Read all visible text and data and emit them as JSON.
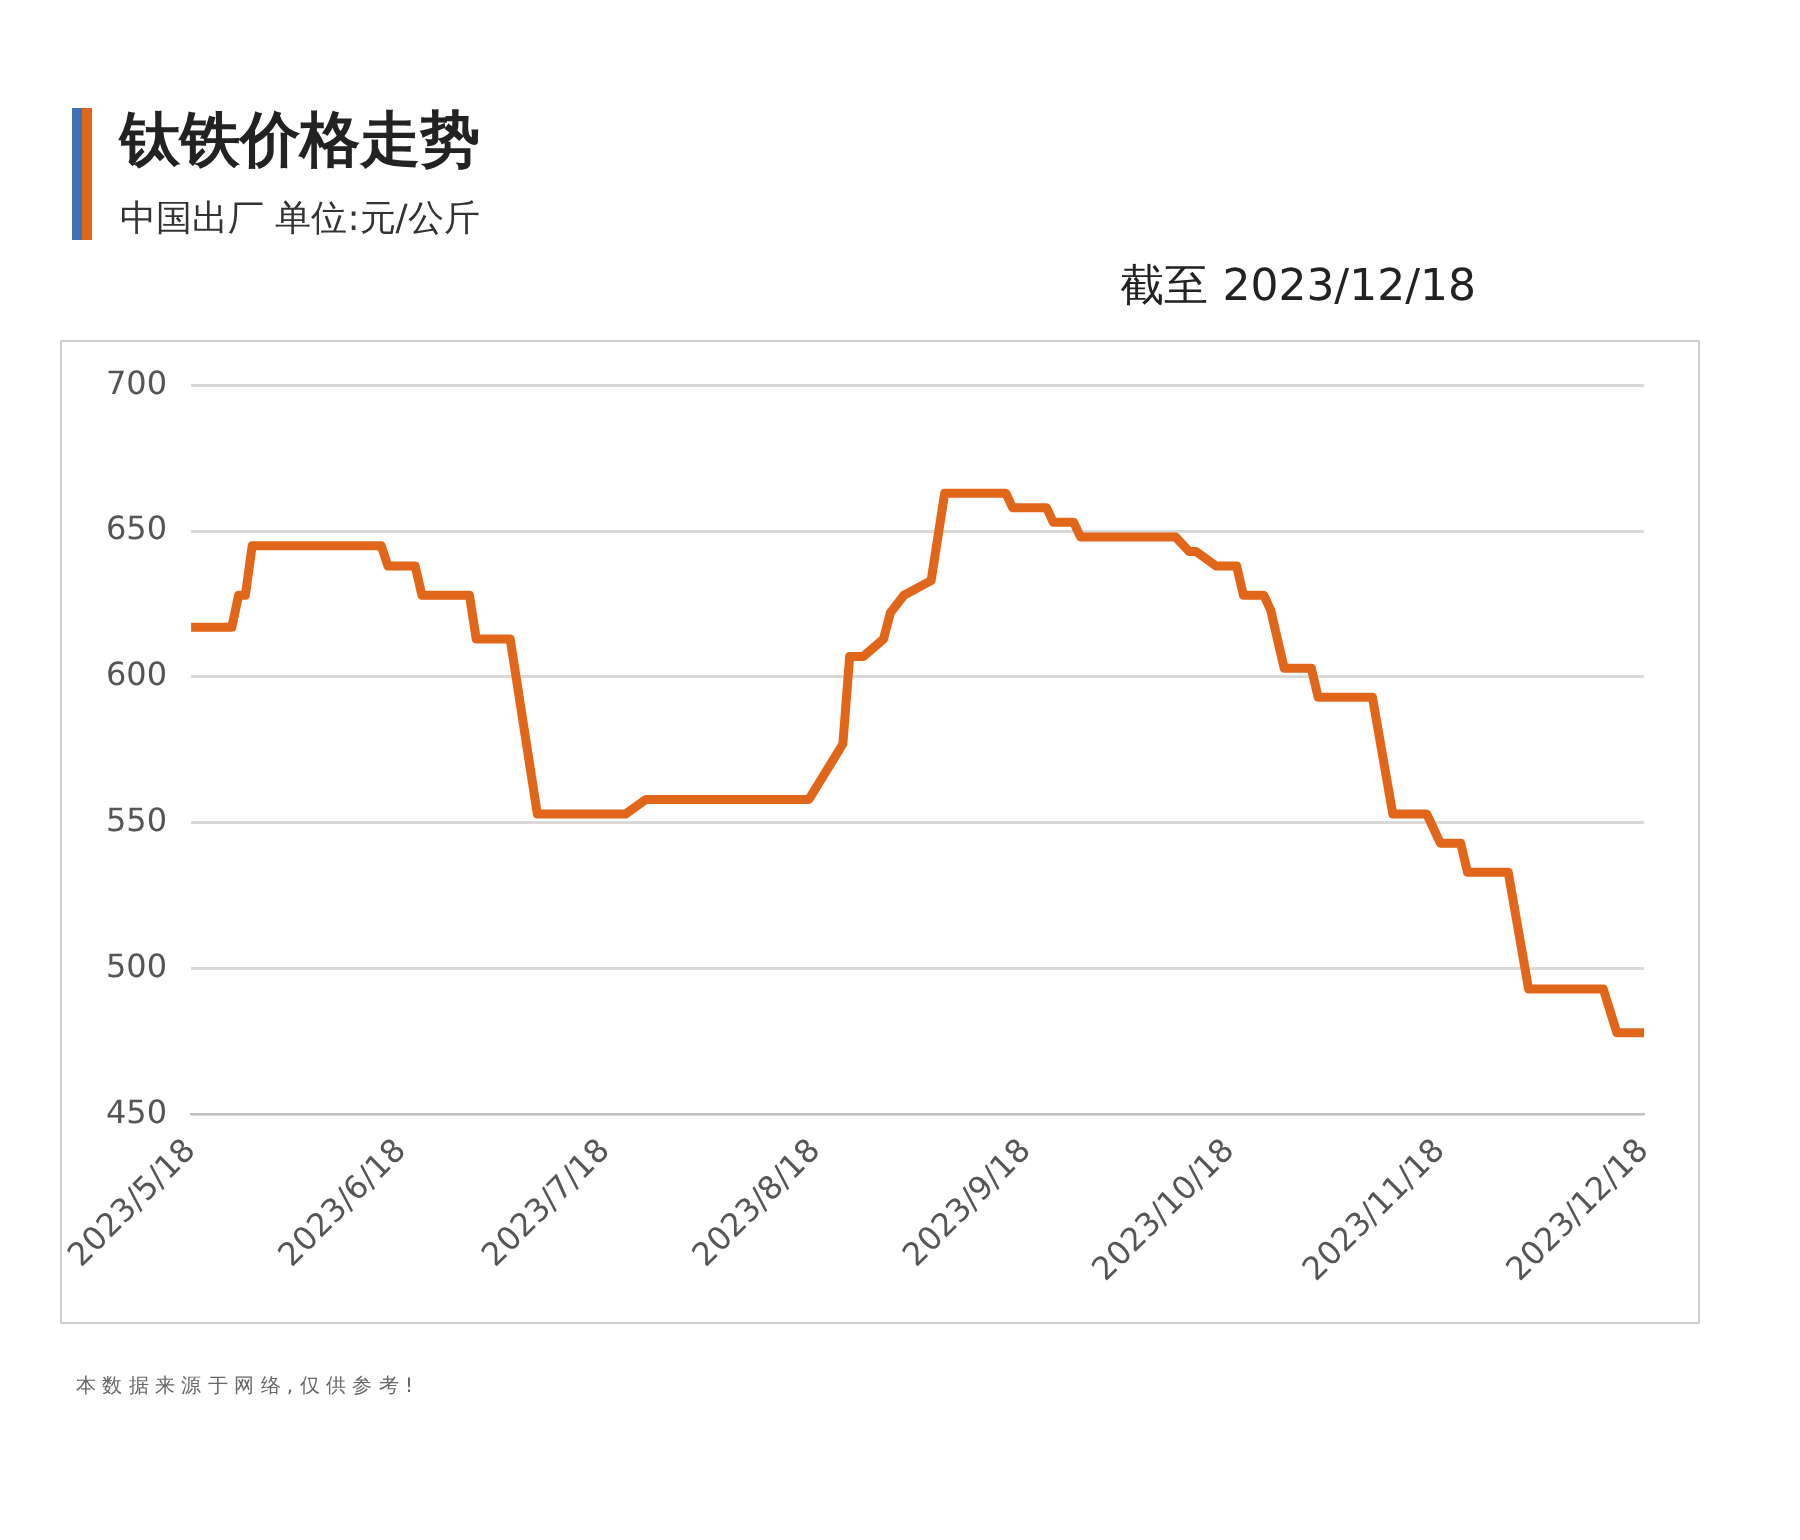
{
  "chart_data": {
    "type": "line",
    "title": "钛铁价格走势",
    "subtitle": "中国出厂  单位:元/公斤",
    "annotations": [
      "截至 2023/12/18",
      "本 数 据 来 源 于 网 络 , 仅 供 参 考 !"
    ],
    "x": [
      "2023-05-18",
      "2023-05-24",
      "2023-05-25",
      "2023-05-26",
      "2023-05-27",
      "2023-06-15",
      "2023-06-16",
      "2023-06-20",
      "2023-06-21",
      "2023-06-28",
      "2023-06-29",
      "2023-07-04",
      "2023-07-08",
      "2023-07-21",
      "2023-07-24",
      "2023-08-17",
      "2023-08-22",
      "2023-08-23",
      "2023-08-25",
      "2023-08-28",
      "2023-08-29",
      "2023-08-31",
      "2023-09-04",
      "2023-09-06",
      "2023-09-15",
      "2023-09-16",
      "2023-09-21",
      "2023-09-22",
      "2023-09-25",
      "2023-09-26",
      "2023-10-10",
      "2023-10-12",
      "2023-10-13",
      "2023-10-16",
      "2023-10-19",
      "2023-10-20",
      "2023-10-23",
      "2023-10-24",
      "2023-10-26",
      "2023-10-30",
      "2023-10-31",
      "2023-11-08",
      "2023-11-11",
      "2023-11-16",
      "2023-11-18",
      "2023-11-21",
      "2023-11-22",
      "2023-11-28",
      "2023-12-01",
      "2023-12-12",
      "2023-12-14",
      "2023-12-18"
    ],
    "series": [
      {
        "color": "#e2661a",
        "values": [
          617,
          617,
          628,
          628,
          645,
          645,
          638,
          638,
          628,
          628,
          613,
          613,
          553,
          553,
          558,
          558,
          577,
          607,
          607,
          613,
          622,
          628,
          633,
          663,
          663,
          658,
          658,
          653,
          653,
          648,
          648,
          643,
          643,
          638,
          638,
          628,
          628,
          623,
          603,
          603,
          593,
          593,
          553,
          553,
          543,
          543,
          533,
          533,
          493,
          493,
          478,
          478
        ]
      }
    ],
    "xlim": [
      "2023-05-18",
      "2023-12-18"
    ],
    "xticks": [
      {
        "value": "2023-05-18",
        "label": "2023/5/18"
      },
      {
        "value": "2023-06-18",
        "label": "2023/6/18"
      },
      {
        "value": "2023-07-18",
        "label": "2023/7/18"
      },
      {
        "value": "2023-08-18",
        "label": "2023/8/18"
      },
      {
        "value": "2023-09-18",
        "label": "2023/9/18"
      },
      {
        "value": "2023-10-18",
        "label": "2023/10/18"
      },
      {
        "value": "2023-11-18",
        "label": "2023/11/18"
      },
      {
        "value": "2023-12-18",
        "label": "2023/12/18"
      }
    ],
    "ylim": [
      450,
      700
    ],
    "yticks": [
      450,
      500,
      550,
      600,
      650,
      700
    ],
    "grid": "y",
    "legend": false,
    "marker": "none",
    "line_style": "solid"
  }
}
